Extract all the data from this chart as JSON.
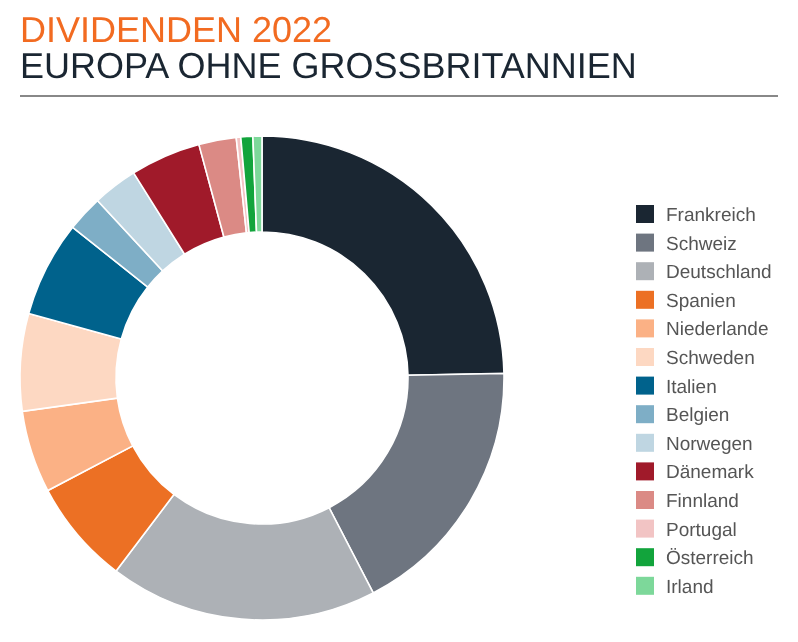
{
  "chart_data": {
    "type": "donut",
    "title": "DIVIDENDEN 2022",
    "subtitle": "EUROPA OHNE GROSSBRITANNIEN",
    "categories": [
      "Frankreich",
      "Schweiz",
      "Deutschland",
      "Spanien",
      "Niederlande",
      "Schweden",
      "Italien",
      "Belgien",
      "Norwegen",
      "Dänemark",
      "Finnland",
      "Portugal",
      "Österreich",
      "Irland"
    ],
    "values": [
      24.7,
      17.7,
      17.9,
      7.0,
      5.5,
      6.5,
      6.4,
      2.4,
      3.0,
      4.7,
      2.5,
      0.3,
      0.8,
      0.6
    ],
    "colors": [
      "#1a2632",
      "#6e7580",
      "#adb1b6",
      "#ec7024",
      "#fbb185",
      "#fdd8c2",
      "#00628c",
      "#7eaec6",
      "#bfd6e2",
      "#a01a2a",
      "#db8a85",
      "#f2c4c4",
      "#12a43c",
      "#7dd89a"
    ],
    "legend": "right"
  }
}
